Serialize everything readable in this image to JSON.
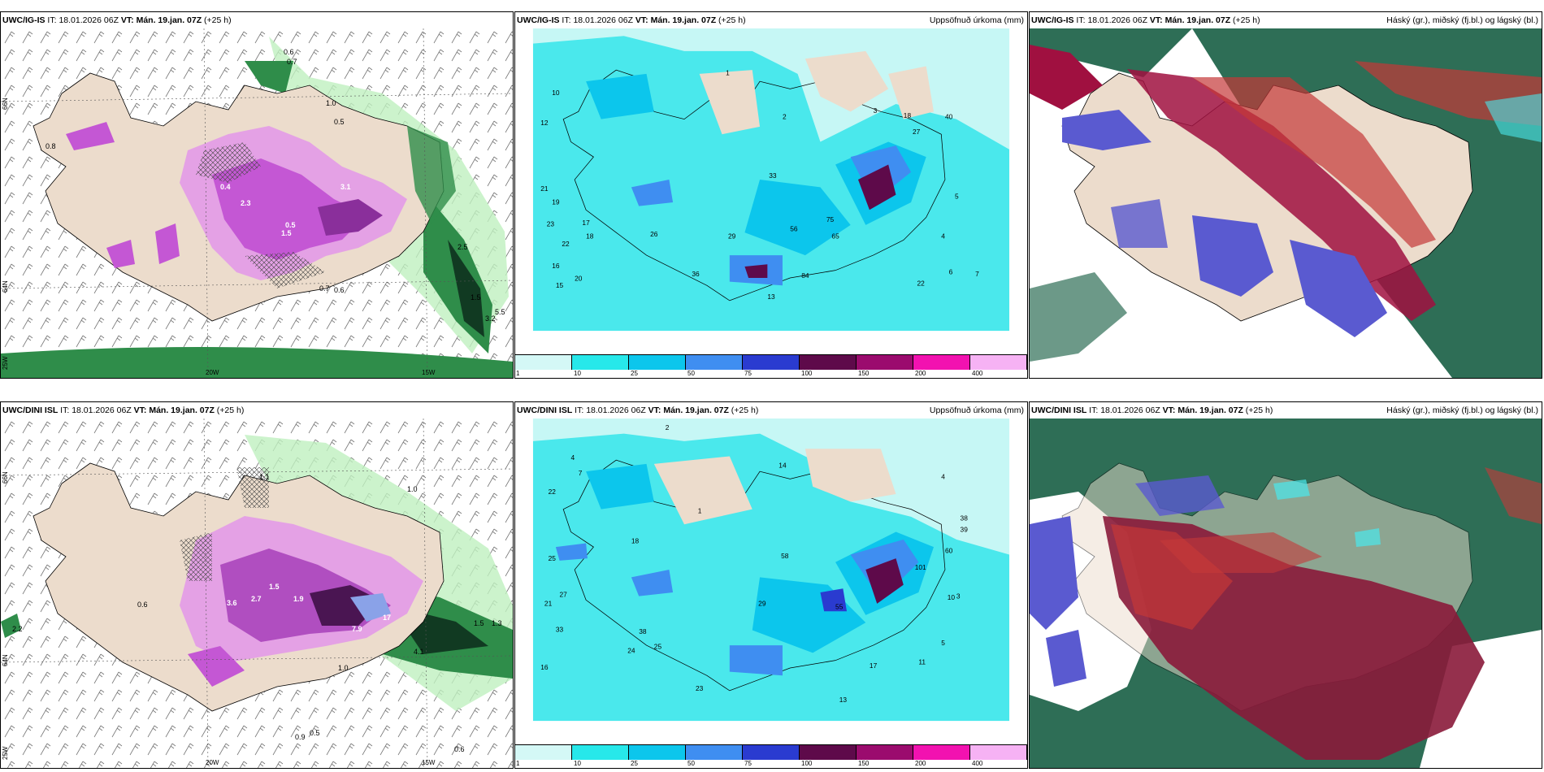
{
  "panels": [
    {
      "id": "p1",
      "model": "UWC/IG-IS",
      "it_label": "IT:",
      "it_value": "18.01.2026 06Z",
      "vt_label": "VT:",
      "vt_value": "Mán. 19.jan. 07Z",
      "lead": "(+25 h)",
      "right_title": ""
    },
    {
      "id": "p2",
      "model": "UWC/IG-IS",
      "it_label": "IT:",
      "it_value": "18.01.2026 06Z",
      "vt_label": "VT:",
      "vt_value": "Mán. 19.jan. 07Z",
      "lead": "(+25 h)",
      "right_title": "Uppsöfnuð úrkoma (mm)"
    },
    {
      "id": "p3",
      "model": "UWC/IG-IS",
      "it_label": "IT:",
      "it_value": "18.01.2026 06Z",
      "vt_label": "VT:",
      "vt_value": "Mán. 19.jan. 07Z",
      "lead": "(+25 h)",
      "right_title": "Háský (gr.), miðský (fj.bl.) og lágský (bl.)"
    },
    {
      "id": "p4",
      "model": "UWC/DINI ISL",
      "it_label": "IT:",
      "it_value": "18.01.2026 06Z",
      "vt_label": "VT:",
      "vt_value": "Mán. 19.jan. 07Z",
      "lead": "(+25 h)",
      "right_title": ""
    },
    {
      "id": "p5",
      "model": "UWC/DINI ISL",
      "it_label": "IT:",
      "it_value": "18.01.2026 06Z",
      "vt_label": "VT:",
      "vt_value": "Mán. 19.jan. 07Z",
      "lead": "(+25 h)",
      "right_title": "Uppsöfnuð úrkoma (mm)"
    },
    {
      "id": "p6",
      "model": "UWC/DINI ISL",
      "it_label": "IT:",
      "it_value": "18.01.2026 06Z",
      "vt_label": "VT:",
      "vt_value": "Mán. 19.jan. 07Z",
      "lead": "(+25 h)",
      "right_title": "Háský (gr.), miðský (fj.bl.) og lágský (bl.)"
    }
  ],
  "axis_labels": {
    "lat66": "66N",
    "lat64": "64N",
    "lon25": "25W",
    "lon20": "20W",
    "lon15": "15W"
  },
  "precip_scale": {
    "ticks": [
      "1",
      "10",
      "25",
      "50",
      "75",
      "100",
      "150",
      "200",
      "400"
    ],
    "colors": [
      "#d4f8f6",
      "#27e8ea",
      "#0cc6ec",
      "#3f8ef1",
      "#2a3bd0",
      "#5e0a4a",
      "#9b0b6e",
      "#f212b0",
      "#f6b2f4"
    ]
  },
  "colors": {
    "land": "#ecdccc",
    "sea_green": "#2e6e56",
    "magenta": "#e070e8",
    "cyan": "#4ae8ec",
    "cloud_red": "#a01040",
    "cloud_blue": "#5a5ad0"
  },
  "labels": {
    "p1": [
      "0.6",
      "0.7",
      "1.0",
      "0.5",
      "2.3",
      "1.5",
      "3.1",
      "2.5",
      "0.8",
      "0.6",
      "0.7",
      "1.5",
      "5.5",
      "3.2",
      "0.5",
      "0.4"
    ],
    "p2": [
      "10",
      "12",
      "21",
      "19",
      "23",
      "22",
      "16",
      "15",
      "17",
      "18",
      "20",
      "26",
      "36",
      "29",
      "33",
      "13",
      "75",
      "56",
      "84",
      "65",
      "22",
      "6",
      "7",
      "4",
      "5",
      "40",
      "18",
      "27",
      "3",
      "2",
      "1"
    ],
    "p4": [
      "1.1",
      "1.0",
      "0.6",
      "2.2",
      "3.6",
      "2.7",
      "1.5",
      "1.9",
      "7.9",
      "17",
      "4.1",
      "1.0",
      "0.5",
      "0.9",
      "1.3",
      "1.5",
      "0.6"
    ],
    "p5": [
      "2",
      "4",
      "7",
      "14",
      "22",
      "25",
      "27",
      "21",
      "33",
      "38",
      "18",
      "16",
      "24",
      "25",
      "29",
      "55",
      "101",
      "38",
      "39",
      "60",
      "10",
      "4",
      "3",
      "5",
      "11",
      "17",
      "23",
      "13",
      "58",
      "1"
    ]
  }
}
